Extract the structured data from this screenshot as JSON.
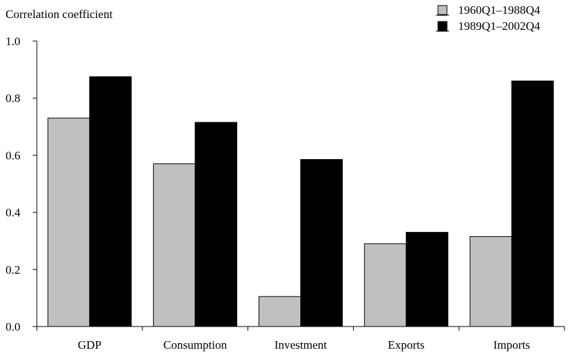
{
  "chart_data": {
    "type": "bar",
    "title": "",
    "xlabel": "",
    "ylabel": "Correlation coefficient",
    "categories": [
      "GDP",
      "Consumption",
      "Investment",
      "Exports",
      "Imports"
    ],
    "series": [
      {
        "name": "1960Q1–1988Q4",
        "color": "#c0c0c0",
        "values": [
          0.73,
          0.57,
          0.105,
          0.29,
          0.315
        ]
      },
      {
        "name": "1989Q1–2002Q4",
        "color": "#000000",
        "values": [
          0.875,
          0.715,
          0.585,
          0.33,
          0.86
        ]
      }
    ],
    "ylim": [
      0,
      1.0
    ],
    "yticks": [
      "0.0",
      "0.2",
      "0.4",
      "0.6",
      "0.8",
      "1.0"
    ],
    "grid": false,
    "legend_position": "top-right"
  }
}
